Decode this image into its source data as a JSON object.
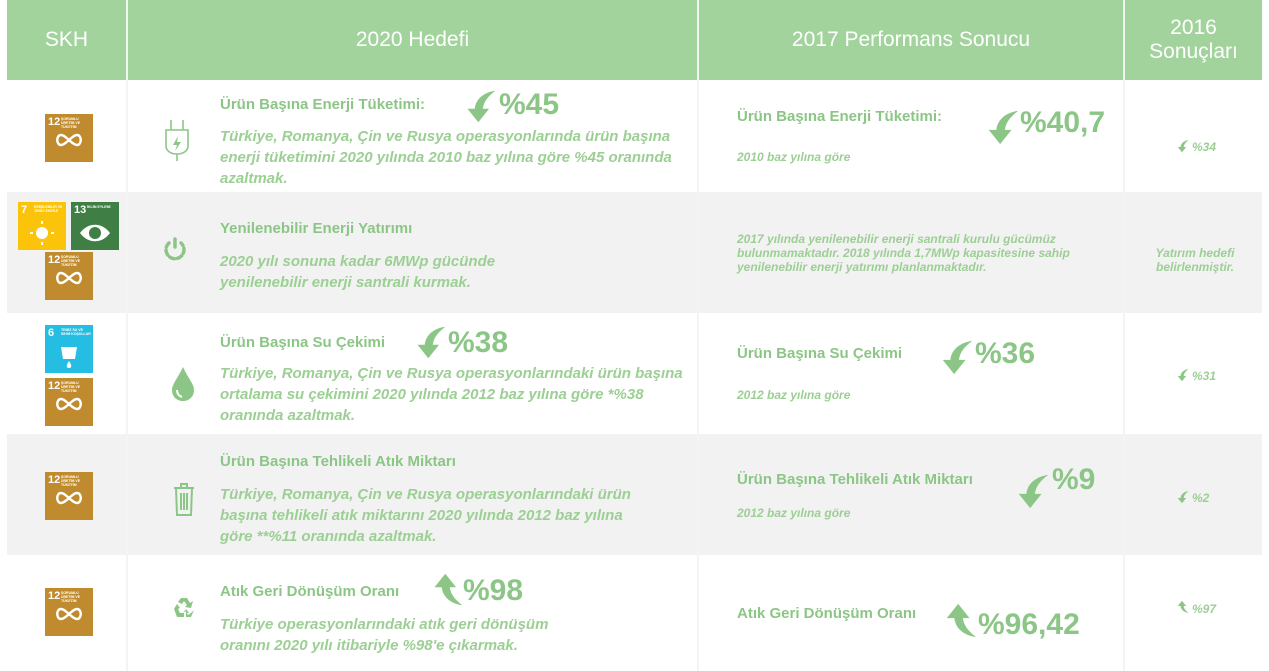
{
  "header": {
    "columns": [
      "SKH",
      "2020 Hedefi",
      "2017 Performans Sonucu",
      "2016 Sonuçları"
    ]
  },
  "rows": [
    {
      "sdg": [
        {
          "number": "12",
          "label": "SORUMLU ÜRETİM VE TÜKETİM"
        }
      ],
      "target": {
        "title": "Ürün Başına Enerji Tüketimi:",
        "value": "%45",
        "text": "Türkiye, Romanya, Çin ve Rusya operasyonlarında ürün başına enerji tüketimini 2020 yılında 2010 baz yılına göre %45 oranında azaltmak."
      },
      "performance": {
        "title": "Ürün Başına Enerji Tüketimi:",
        "value": "%40,7",
        "note": "2010 baz yılına göre"
      },
      "result_2016": "%34"
    },
    {
      "sdg": [
        {
          "number": "7",
          "label": "ERİŞİLEBİLİR VE TEMİZ ENERJİ"
        },
        {
          "number": "13",
          "label": "İKLİM EYLEMİ"
        },
        {
          "number": "12",
          "label": "SORUMLU ÜRETİM VE TÜKETİM"
        }
      ],
      "target": {
        "title": "Yenilenebilir Enerji Yatırımı",
        "text": "2020 yılı sonuna kadar 6MWp gücünde yenilenebilir enerji santrali kurmak."
      },
      "performance": {
        "note": "2017 yılında yenilenebilir enerji santrali kurulu gücümüz bulunmamaktadır. 2018 yılında 1,7MWp kapasitesine sahip yenilenebilir enerji yatırımı planlanmaktadır."
      },
      "result_2016": "Yatırım hedefi belirlenmiştir."
    },
    {
      "sdg": [
        {
          "number": "6",
          "label": "TEMİZ SU VE SIHHİ KOŞULLAR"
        },
        {
          "number": "12",
          "label": "SORUMLU ÜRETİM VE TÜKETİM"
        }
      ],
      "target": {
        "title": "Ürün Başına Su Çekimi",
        "value": "%38",
        "text": "Türkiye, Romanya, Çin ve Rusya operasyonlarındaki ürün başına ortalama su çekimini 2020 yılında 2012 baz yılına göre *%38 oranında azaltmak."
      },
      "performance": {
        "title": "Ürün Başına Su Çekimi",
        "value": "%36",
        "note": "2012 baz yılına göre"
      },
      "result_2016": "%31"
    },
    {
      "sdg": [
        {
          "number": "12",
          "label": "SORUMLU ÜRETİM VE TÜKETİM"
        }
      ],
      "target": {
        "title": "Ürün Başına Tehlikeli Atık Miktarı",
        "text": "Türkiye, Romanya, Çin ve Rusya operasyonlarındaki ürün başına tehlikeli atık miktarını 2020 yılında 2012 baz yılına göre **%11 oranında azaltmak."
      },
      "performance": {
        "title": "Ürün Başına Tehlikeli Atık Miktarı",
        "value": "%9",
        "note": "2012 baz yılına göre"
      },
      "result_2016": "%2"
    },
    {
      "sdg": [
        {
          "number": "12",
          "label": "SORUMLU ÜRETİM VE TÜKETİM"
        }
      ],
      "target": {
        "title": "Atık Geri Dönüşüm Oranı",
        "value": "%98",
        "text": "Türkiye operasyonlarındaki atık geri dönüşüm oranını 2020 yılı itibariyle %98'e çıkarmak."
      },
      "performance": {
        "title": "Atık Geri Dönüşüm Oranı",
        "value": "%96,42"
      },
      "result_2016": "%97"
    }
  ]
}
